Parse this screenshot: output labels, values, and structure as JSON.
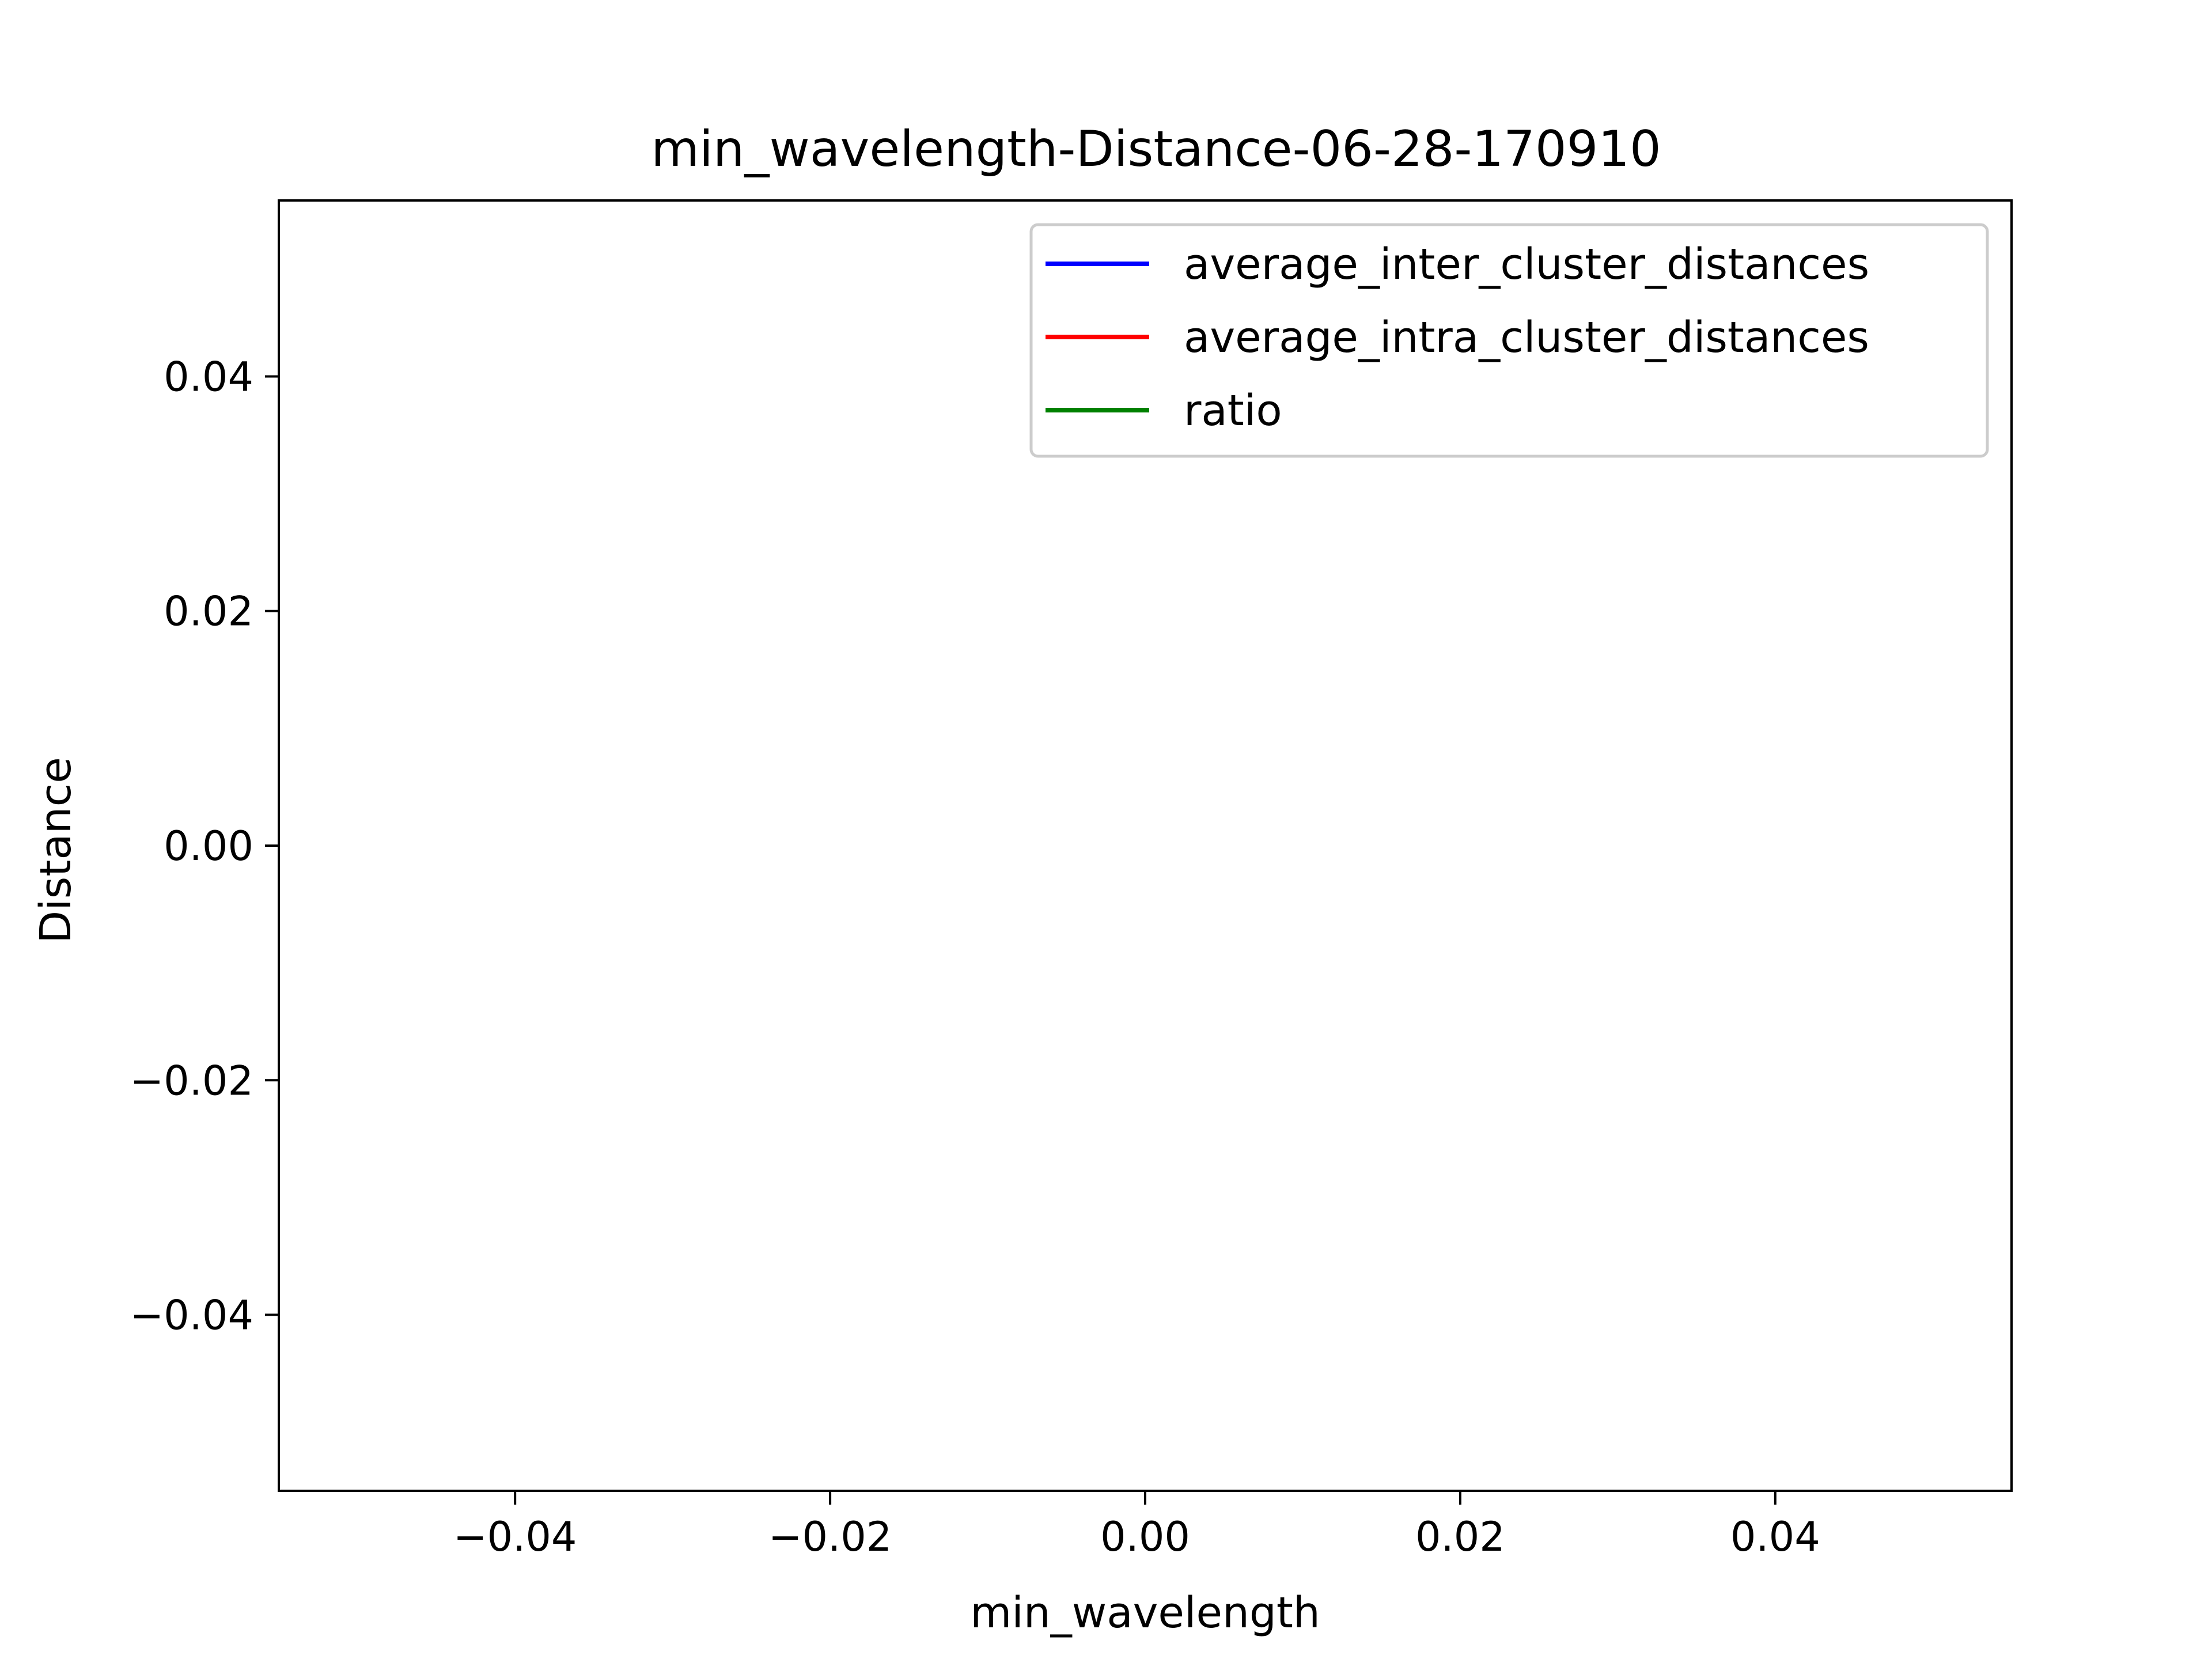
{
  "chart_data": {
    "type": "line",
    "title": "min_wavelength-Distance-06-28-170910",
    "xlabel": "min_wavelength",
    "ylabel": "Distance",
    "xlim": [
      -0.055,
      0.055
    ],
    "ylim": [
      -0.055,
      0.055
    ],
    "xticks": [
      -0.04,
      -0.02,
      0.0,
      0.02,
      0.04
    ],
    "yticks": [
      -0.04,
      -0.02,
      0.0,
      0.02,
      0.04
    ],
    "xtick_labels": [
      "−0.04",
      "−0.02",
      "0.00",
      "0.02",
      "0.04"
    ],
    "ytick_labels": [
      "−0.04",
      "−0.02",
      "0.00",
      "0.02",
      "0.04"
    ],
    "grid": false,
    "legend_position": "top-right",
    "series": [
      {
        "name": "average_inter_cluster_distances",
        "color": "#0000ff",
        "x": [],
        "y": []
      },
      {
        "name": "average_intra_cluster_distances",
        "color": "#ff0000",
        "x": [],
        "y": []
      },
      {
        "name": "ratio",
        "color": "#008000",
        "x": [],
        "y": []
      }
    ]
  }
}
